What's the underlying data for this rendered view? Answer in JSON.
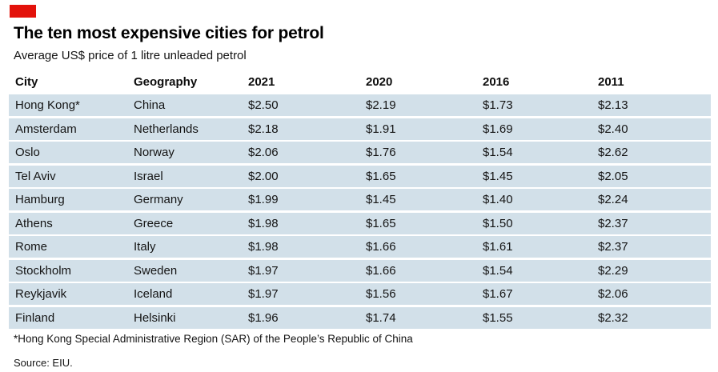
{
  "brand": {
    "accent_red": "#e3120b",
    "row_bg": "#d2e0e9"
  },
  "header": {
    "title": "The ten most expensive cities for petrol",
    "subtitle": "Average US$ price of 1 litre unleaded petrol"
  },
  "table": {
    "columns": [
      "City",
      "Geography",
      "2021",
      "2020",
      "2016",
      "2011"
    ],
    "rows": [
      [
        "Hong Kong*",
        "China",
        "$2.50",
        "$2.19",
        "$1.73",
        "$2.13"
      ],
      [
        "Amsterdam",
        "Netherlands",
        "$2.18",
        "$1.91",
        "$1.69",
        "$2.40"
      ],
      [
        "Oslo",
        "Norway",
        "$2.06",
        "$1.76",
        "$1.54",
        "$2.62"
      ],
      [
        "Tel Aviv",
        "Israel",
        "$2.00",
        "$1.65",
        "$1.45",
        "$2.05"
      ],
      [
        "Hamburg",
        "Germany",
        "$1.99",
        "$1.45",
        "$1.40",
        "$2.24"
      ],
      [
        "Athens",
        "Greece",
        "$1.98",
        "$1.65",
        "$1.50",
        "$2.37"
      ],
      [
        "Rome",
        "Italy",
        "$1.98",
        "$1.66",
        "$1.61",
        "$2.37"
      ],
      [
        "Stockholm",
        "Sweden",
        "$1.97",
        "$1.66",
        "$1.54",
        "$2.29"
      ],
      [
        "Reykjavik",
        "Iceland",
        "$1.97",
        "$1.56",
        "$1.67",
        "$2.06"
      ],
      [
        "Finland",
        "Helsinki",
        "$1.96",
        "$1.74",
        "$1.55",
        "$2.32"
      ]
    ]
  },
  "footnote": "*Hong Kong Special Administrative Region (SAR) of the People’s Republic of China",
  "source": "Source: EIU.",
  "chart_data": {
    "type": "table",
    "title": "The ten most expensive cities for petrol",
    "subtitle": "Average US$ price of 1 litre unleaded petrol",
    "unit": "US$ per litre of unleaded petrol",
    "columns": [
      "City",
      "Geography",
      "2021",
      "2020",
      "2016",
      "2011"
    ],
    "rows": [
      {
        "city": "Hong Kong*",
        "geography": "China",
        "2021": 2.5,
        "2020": 2.19,
        "2016": 1.73,
        "2011": 2.13
      },
      {
        "city": "Amsterdam",
        "geography": "Netherlands",
        "2021": 2.18,
        "2020": 1.91,
        "2016": 1.69,
        "2011": 2.4
      },
      {
        "city": "Oslo",
        "geography": "Norway",
        "2021": 2.06,
        "2020": 1.76,
        "2016": 1.54,
        "2011": 2.62
      },
      {
        "city": "Tel Aviv",
        "geography": "Israel",
        "2021": 2.0,
        "2020": 1.65,
        "2016": 1.45,
        "2011": 2.05
      },
      {
        "city": "Hamburg",
        "geography": "Germany",
        "2021": 1.99,
        "2020": 1.45,
        "2016": 1.4,
        "2011": 2.24
      },
      {
        "city": "Athens",
        "geography": "Greece",
        "2021": 1.98,
        "2020": 1.65,
        "2016": 1.5,
        "2011": 2.37
      },
      {
        "city": "Rome",
        "geography": "Italy",
        "2021": 1.98,
        "2020": 1.66,
        "2016": 1.61,
        "2011": 2.37
      },
      {
        "city": "Stockholm",
        "geography": "Sweden",
        "2021": 1.97,
        "2020": 1.66,
        "2016": 1.54,
        "2011": 2.29
      },
      {
        "city": "Reykjavik",
        "geography": "Iceland",
        "2021": 1.97,
        "2020": 1.56,
        "2016": 1.67,
        "2011": 2.06
      },
      {
        "city": "Finland",
        "geography": "Helsinki",
        "2021": 1.96,
        "2020": 1.74,
        "2016": 1.55,
        "2011": 2.32
      }
    ],
    "footnote": "*Hong Kong Special Administrative Region (SAR) of the People’s Republic of China",
    "source": "EIU"
  }
}
